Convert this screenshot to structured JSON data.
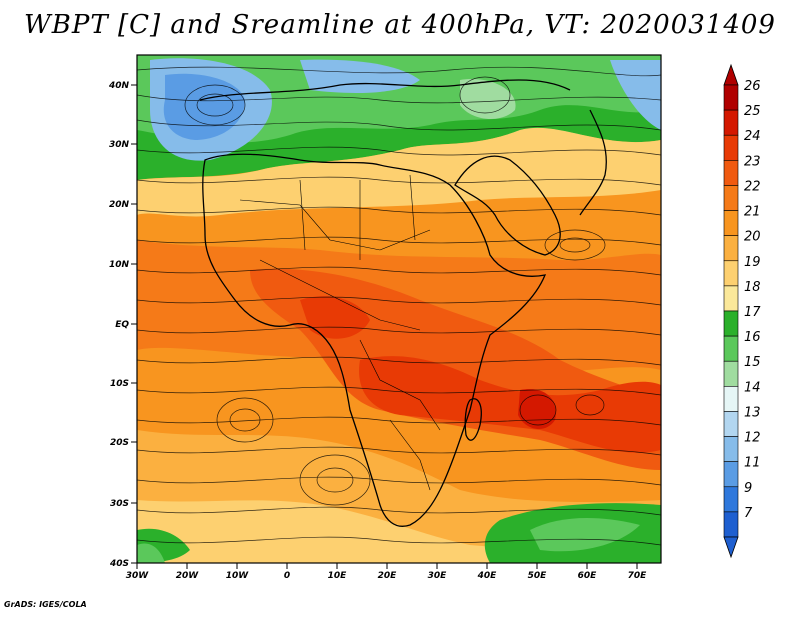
{
  "title": "WBPT [C] and Sreamline at 400hPa, VT: 2020031409",
  "credit": "GrADS: IGES/COLA",
  "lat_labels": [
    "40N",
    "30N",
    "20N",
    "10N",
    "EQ",
    "10S",
    "20S",
    "30S",
    "40S"
  ],
  "lon_labels": [
    "30W",
    "20W",
    "10W",
    "0",
    "10E",
    "20E",
    "30E",
    "40E",
    "50E",
    "60E",
    "70E"
  ],
  "colorbar": {
    "labels": [
      "26",
      "25",
      "24",
      "23",
      "22",
      "21",
      "20",
      "19",
      "18",
      "17",
      "16",
      "15",
      "14",
      "13",
      "12",
      "11",
      "9",
      "7"
    ],
    "colors": [
      "#b00000",
      "#d41800",
      "#e83a05",
      "#f05a10",
      "#f57a18",
      "#f8951f",
      "#fbb040",
      "#fdd070",
      "#fbe89a",
      "#2bb02b",
      "#5bc85b",
      "#a0dca0",
      "#e6f6f6",
      "#b2d6f0",
      "#86bcea",
      "#5a9ce4",
      "#2f78dc",
      "#1e5fd0"
    ]
  }
}
